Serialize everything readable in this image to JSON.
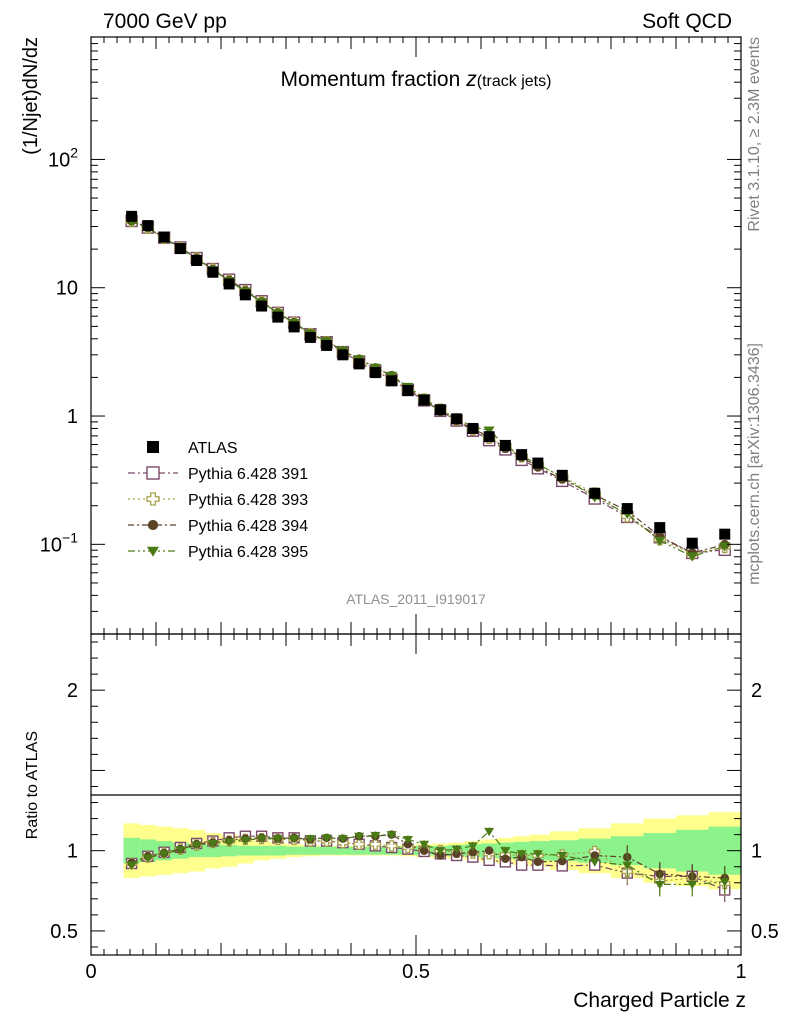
{
  "header": {
    "left": "7000 GeV pp",
    "right": "Soft QCD"
  },
  "side": {
    "rivet": "Rivet 3.1.10, ≥ 2.3M events",
    "mcplots": "mcplots.cern.ch [arXiv:1306.3436]"
  },
  "colors": {
    "atlas": "#000000",
    "py391": "#7a4a6a",
    "py393": "#a8a04a",
    "py394": "#5a4226",
    "py395": "#4a7a16",
    "band_inner": "#8cf28c",
    "band_outer": "#fefe8c"
  },
  "chart_data": {
    "type": "scatter",
    "title": "Momentum fraction",
    "title_suffix_italic": "z",
    "title_sub": "(track jets)",
    "xlabel": "Charged Particle z",
    "ylabel": "(1/Njet)dN/dz",
    "ratio_ylabel": "Ratio to ATLAS",
    "analysis": "ATLAS_2011_I919017",
    "xlim": [
      0,
      1
    ],
    "ylim": [
      0.02,
      900
    ],
    "yscale": "log",
    "ratio_ylim": [
      0.35,
      2.35
    ],
    "x_ticks": [
      {
        "v": 0,
        "label": "0"
      },
      {
        "v": 0.5,
        "label": "0.5"
      },
      {
        "v": 1,
        "label": "1"
      }
    ],
    "y_ticks": [
      {
        "v": 0.1,
        "base": "10",
        "exp": "−1"
      },
      {
        "v": 1,
        "base": "1",
        "exp": ""
      },
      {
        "v": 10,
        "base": "10",
        "exp": ""
      },
      {
        "v": 100,
        "base": "10",
        "exp": "2"
      }
    ],
    "ratio_ticks": [
      {
        "v": 0.5,
        "label": "0.5"
      },
      {
        "v": 1,
        "label": "1"
      },
      {
        "v": 2,
        "label": "2"
      }
    ],
    "x": [
      0.0625,
      0.0875,
      0.1125,
      0.1375,
      0.1625,
      0.1875,
      0.2125,
      0.2375,
      0.2625,
      0.2875,
      0.3125,
      0.3375,
      0.3625,
      0.3875,
      0.4125,
      0.4375,
      0.4625,
      0.4875,
      0.5125,
      0.5375,
      0.5625,
      0.5875,
      0.6125,
      0.6375,
      0.6625,
      0.6875,
      0.725,
      0.775,
      0.825,
      0.875,
      0.925,
      0.975
    ],
    "atlas": [
      36,
      30.5,
      24.8,
      20.2,
      16.3,
      13.2,
      10.7,
      8.8,
      7.2,
      5.9,
      4.95,
      4.1,
      3.55,
      3.0,
      2.55,
      2.18,
      1.88,
      1.58,
      1.33,
      1.12,
      0.95,
      0.8,
      0.69,
      0.59,
      0.5,
      0.43,
      0.345,
      0.25,
      0.19,
      0.135,
      0.102,
      0.12
    ],
    "band_inner": [
      0.08,
      0.07,
      0.06,
      0.05,
      0.04,
      0.04,
      0.035,
      0.03,
      0.03,
      0.03,
      0.025,
      0.025,
      0.025,
      0.025,
      0.025,
      0.025,
      0.025,
      0.025,
      0.03,
      0.03,
      0.035,
      0.04,
      0.045,
      0.05,
      0.055,
      0.06,
      0.065,
      0.075,
      0.09,
      0.11,
      0.13,
      0.15
    ],
    "band_outer": [
      0.17,
      0.16,
      0.15,
      0.14,
      0.13,
      0.11,
      0.1,
      0.08,
      0.06,
      0.05,
      0.04,
      0.035,
      0.03,
      0.03,
      0.03,
      0.03,
      0.03,
      0.035,
      0.04,
      0.045,
      0.05,
      0.06,
      0.07,
      0.08,
      0.09,
      0.1,
      0.12,
      0.14,
      0.17,
      0.2,
      0.22,
      0.24
    ],
    "series": [
      {
        "name": "Pythia 6.428 391",
        "key": "py391",
        "marker": "open-square",
        "dash": "7 3 2 3",
        "ratio": [
          0.92,
          0.965,
          0.99,
          1.02,
          1.045,
          1.06,
          1.08,
          1.09,
          1.09,
          1.08,
          1.08,
          1.06,
          1.06,
          1.05,
          1.04,
          1.03,
          1.02,
          1.01,
          0.995,
          0.98,
          0.97,
          0.96,
          0.94,
          0.93,
          0.91,
          0.91,
          0.905,
          0.91,
          0.86,
          0.84,
          0.84,
          0.755
        ]
      },
      {
        "name": "Pythia 6.428 393",
        "key": "py393",
        "marker": "open-cross",
        "dash": "2 3",
        "ratio": [
          0.92,
          0.96,
          0.985,
          1.01,
          1.035,
          1.05,
          1.06,
          1.07,
          1.075,
          1.07,
          1.07,
          1.06,
          1.06,
          1.05,
          1.04,
          1.04,
          1.03,
          1.02,
          1.01,
          1.0,
          0.99,
          0.985,
          0.98,
          0.975,
          0.97,
          0.97,
          0.975,
          0.995,
          0.87,
          0.81,
          0.83,
          0.795
        ]
      },
      {
        "name": "Pythia 6.428 394",
        "key": "py394",
        "marker": "filled-circle",
        "dash": "6 3 2 3",
        "ratio": [
          0.925,
          0.965,
          0.985,
          1.01,
          1.04,
          1.05,
          1.065,
          1.075,
          1.08,
          1.075,
          1.08,
          1.07,
          1.08,
          1.075,
          1.09,
          1.09,
          1.1,
          1.04,
          1.0,
          0.97,
          0.98,
          0.99,
          1.0,
          0.95,
          0.96,
          0.93,
          0.935,
          0.97,
          0.96,
          0.855,
          0.84,
          0.83
        ]
      },
      {
        "name": "Pythia 6.428 395",
        "key": "py395",
        "marker": "filled-triangle-down",
        "dash": "7 3 2 3 2 3",
        "ratio": [
          0.91,
          0.955,
          0.98,
          1.005,
          1.035,
          1.045,
          1.055,
          1.065,
          1.075,
          1.075,
          1.075,
          1.075,
          1.08,
          1.075,
          1.09,
          1.095,
          1.1,
          1.07,
          1.04,
          1.0,
          1.01,
          1.03,
          1.12,
          1.0,
          0.98,
          0.98,
          0.97,
          0.93,
          0.91,
          0.79,
          0.79,
          0.805
        ]
      }
    ]
  }
}
